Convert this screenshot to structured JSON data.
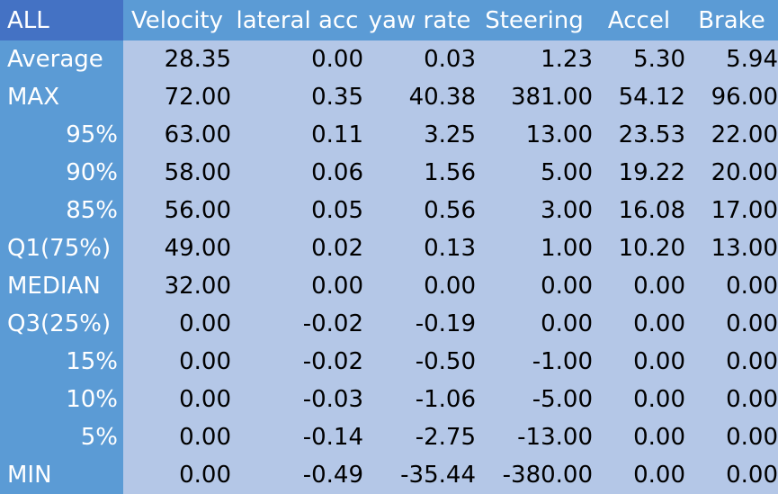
{
  "table": {
    "corner_label": "ALL",
    "columns": [
      "Velocity",
      "lateral acc",
      "yaw rate",
      "Steering",
      "Accel",
      "Brake"
    ],
    "rows": [
      {
        "label": "Average",
        "align": "left",
        "values": [
          "28.35",
          "0.00",
          "0.03",
          "1.23",
          "5.30",
          "5.94"
        ]
      },
      {
        "label": "MAX",
        "align": "left",
        "values": [
          "72.00",
          "0.35",
          "40.38",
          "381.00",
          "54.12",
          "96.00"
        ]
      },
      {
        "label": "95%",
        "align": "right",
        "values": [
          "63.00",
          "0.11",
          "3.25",
          "13.00",
          "23.53",
          "22.00"
        ]
      },
      {
        "label": "90%",
        "align": "right",
        "values": [
          "58.00",
          "0.06",
          "1.56",
          "5.00",
          "19.22",
          "20.00"
        ]
      },
      {
        "label": "85%",
        "align": "right",
        "values": [
          "56.00",
          "0.05",
          "0.56",
          "3.00",
          "16.08",
          "17.00"
        ]
      },
      {
        "label": "Q1(75%)",
        "align": "left",
        "values": [
          "49.00",
          "0.02",
          "0.13",
          "1.00",
          "10.20",
          "13.00"
        ]
      },
      {
        "label": "MEDIAN",
        "align": "left",
        "values": [
          "32.00",
          "0.00",
          "0.00",
          "0.00",
          "0.00",
          "0.00"
        ]
      },
      {
        "label": "Q3(25%)",
        "align": "left",
        "values": [
          "0.00",
          "-0.02",
          "-0.19",
          "0.00",
          "0.00",
          "0.00"
        ]
      },
      {
        "label": "15%",
        "align": "right",
        "values": [
          "0.00",
          "-0.02",
          "-0.50",
          "-1.00",
          "0.00",
          "0.00"
        ]
      },
      {
        "label": "10%",
        "align": "right",
        "values": [
          "0.00",
          "-0.03",
          "-1.06",
          "-5.00",
          "0.00",
          "0.00"
        ]
      },
      {
        "label": "5%",
        "align": "right",
        "values": [
          "0.00",
          "-0.14",
          "-2.75",
          "-13.00",
          "0.00",
          "0.00"
        ]
      },
      {
        "label": "MIN",
        "align": "left",
        "values": [
          "0.00",
          "-0.49",
          "-35.44",
          "-380.00",
          "0.00",
          "0.00"
        ]
      }
    ]
  },
  "colors": {
    "corner_bg": "#4472c4",
    "header_bg": "#5b9bd5",
    "cell_bg": "#b4c7e7",
    "header_text": "#ffffff",
    "cell_text": "#000000"
  }
}
